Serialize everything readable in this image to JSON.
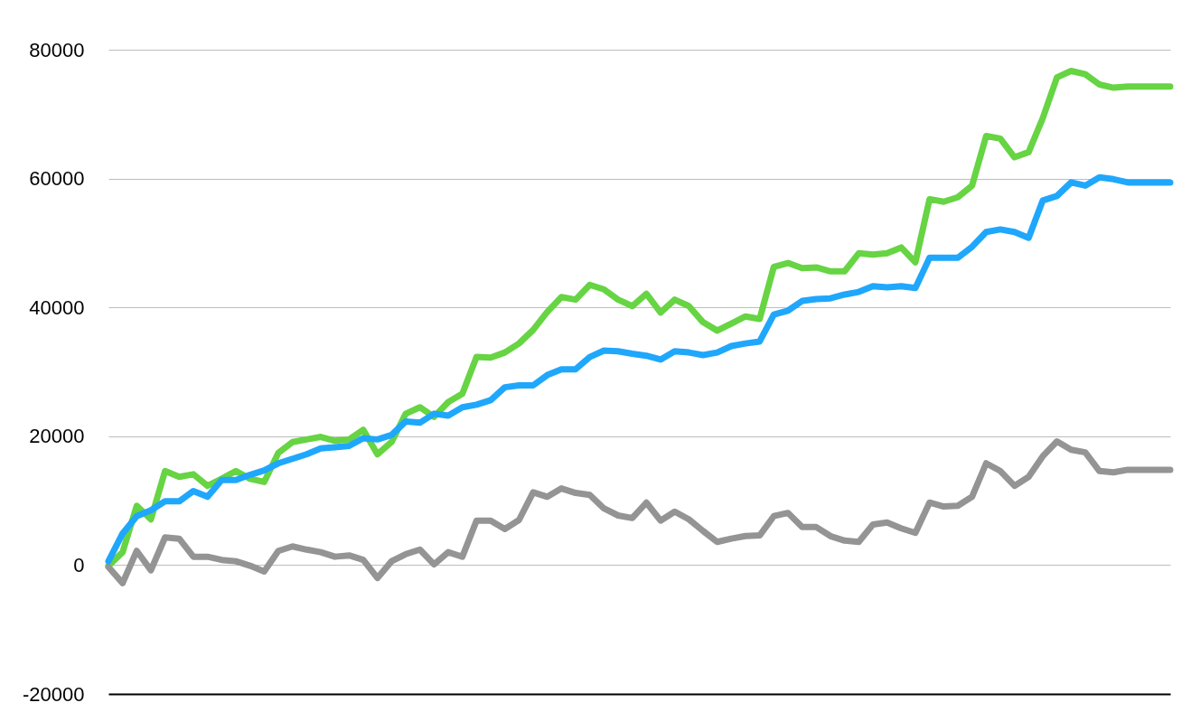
{
  "chart_data": {
    "type": "line",
    "categories": [
      null,
      null,
      null,
      null,
      null,
      null,
      null,
      null,
      null,
      null,
      null,
      null,
      null,
      null,
      null,
      null,
      null,
      null,
      null,
      null,
      null,
      null,
      null,
      null,
      null,
      null,
      null,
      null,
      null,
      null,
      null,
      null,
      null,
      null,
      null,
      null,
      null,
      null,
      null,
      null,
      null,
      null,
      null,
      null,
      null,
      null,
      null,
      null,
      null,
      null,
      null,
      null,
      null,
      null,
      null,
      null,
      null,
      null,
      null,
      null,
      null,
      null,
      null,
      null,
      null,
      null,
      null,
      null,
      null,
      null,
      null,
      null,
      null,
      null,
      null,
      null
    ],
    "series": [
      {
        "color": "#66d443",
        "values": [
          -100,
          2000,
          9200,
          7100,
          14600,
          13700,
          14100,
          12300,
          13400,
          14600,
          13400,
          12900,
          17400,
          19100,
          19500,
          19900,
          19300,
          19500,
          21000,
          17200,
          19100,
          23500,
          24500,
          23000,
          25300,
          26600,
          32300,
          32200,
          33000,
          34400,
          36500,
          39300,
          41600,
          41200,
          43500,
          42800,
          41200,
          40200,
          42100,
          39200,
          41200,
          40200,
          37700,
          36400,
          37500,
          38600,
          38200,
          46300,
          46900,
          46100,
          46200,
          45600,
          45600,
          48400,
          48200,
          48400,
          49300,
          47000,
          56800,
          56400,
          57100,
          58900,
          66600,
          66200,
          63300,
          64100,
          69400,
          75700,
          76700,
          76200,
          74600,
          74100,
          74300,
          74300,
          74300,
          74300
        ]
      },
      {
        "color": "#949494",
        "values": [
          -300,
          -2800,
          2200,
          -800,
          4300,
          4100,
          1300,
          1300,
          800,
          600,
          -100,
          -1000,
          2200,
          2900,
          2400,
          2000,
          1300,
          1500,
          800,
          -2000,
          600,
          1700,
          2400,
          100,
          2000,
          1300,
          6900,
          6900,
          5600,
          7000,
          11300,
          10600,
          11900,
          11200,
          10900,
          8800,
          7700,
          7300,
          9700,
          6900,
          8300,
          7100,
          5300,
          3600,
          4100,
          4500,
          4600,
          7600,
          8100,
          5900,
          5900,
          4500,
          3800,
          3600,
          6300,
          6600,
          5700,
          5000,
          9700,
          9100,
          9200,
          10600,
          15800,
          14600,
          12300,
          13700,
          16900,
          19200,
          17900,
          17500,
          14600,
          14400,
          14800,
          14800,
          14800,
          14800
        ]
      },
      {
        "color": "#1fa7fc",
        "values": [
          600,
          4900,
          7600,
          8500,
          9900,
          9900,
          11500,
          10600,
          13200,
          13200,
          14000,
          14700,
          15800,
          16500,
          17200,
          18100,
          18300,
          18500,
          19700,
          19500,
          20200,
          22300,
          22100,
          23500,
          23200,
          24500,
          24900,
          25600,
          27600,
          27900,
          27900,
          29500,
          30400,
          30400,
          32300,
          33300,
          33200,
          32800,
          32500,
          31900,
          33200,
          33000,
          32600,
          33000,
          34000,
          34400,
          34700,
          38900,
          39500,
          41000,
          41300,
          41400,
          42000,
          42400,
          43300,
          43100,
          43300,
          43000,
          47700,
          47700,
          47700,
          49400,
          51700,
          52100,
          51700,
          50800,
          56600,
          57300,
          59400,
          58900,
          60200,
          59900,
          59400,
          59400,
          59400,
          59400
        ]
      }
    ],
    "ylim": [
      -20000,
      80000
    ],
    "yticks": [
      -20000,
      0,
      20000,
      40000,
      60000,
      80000
    ],
    "grid": "y",
    "legend": false,
    "tick_labels": "y"
  }
}
